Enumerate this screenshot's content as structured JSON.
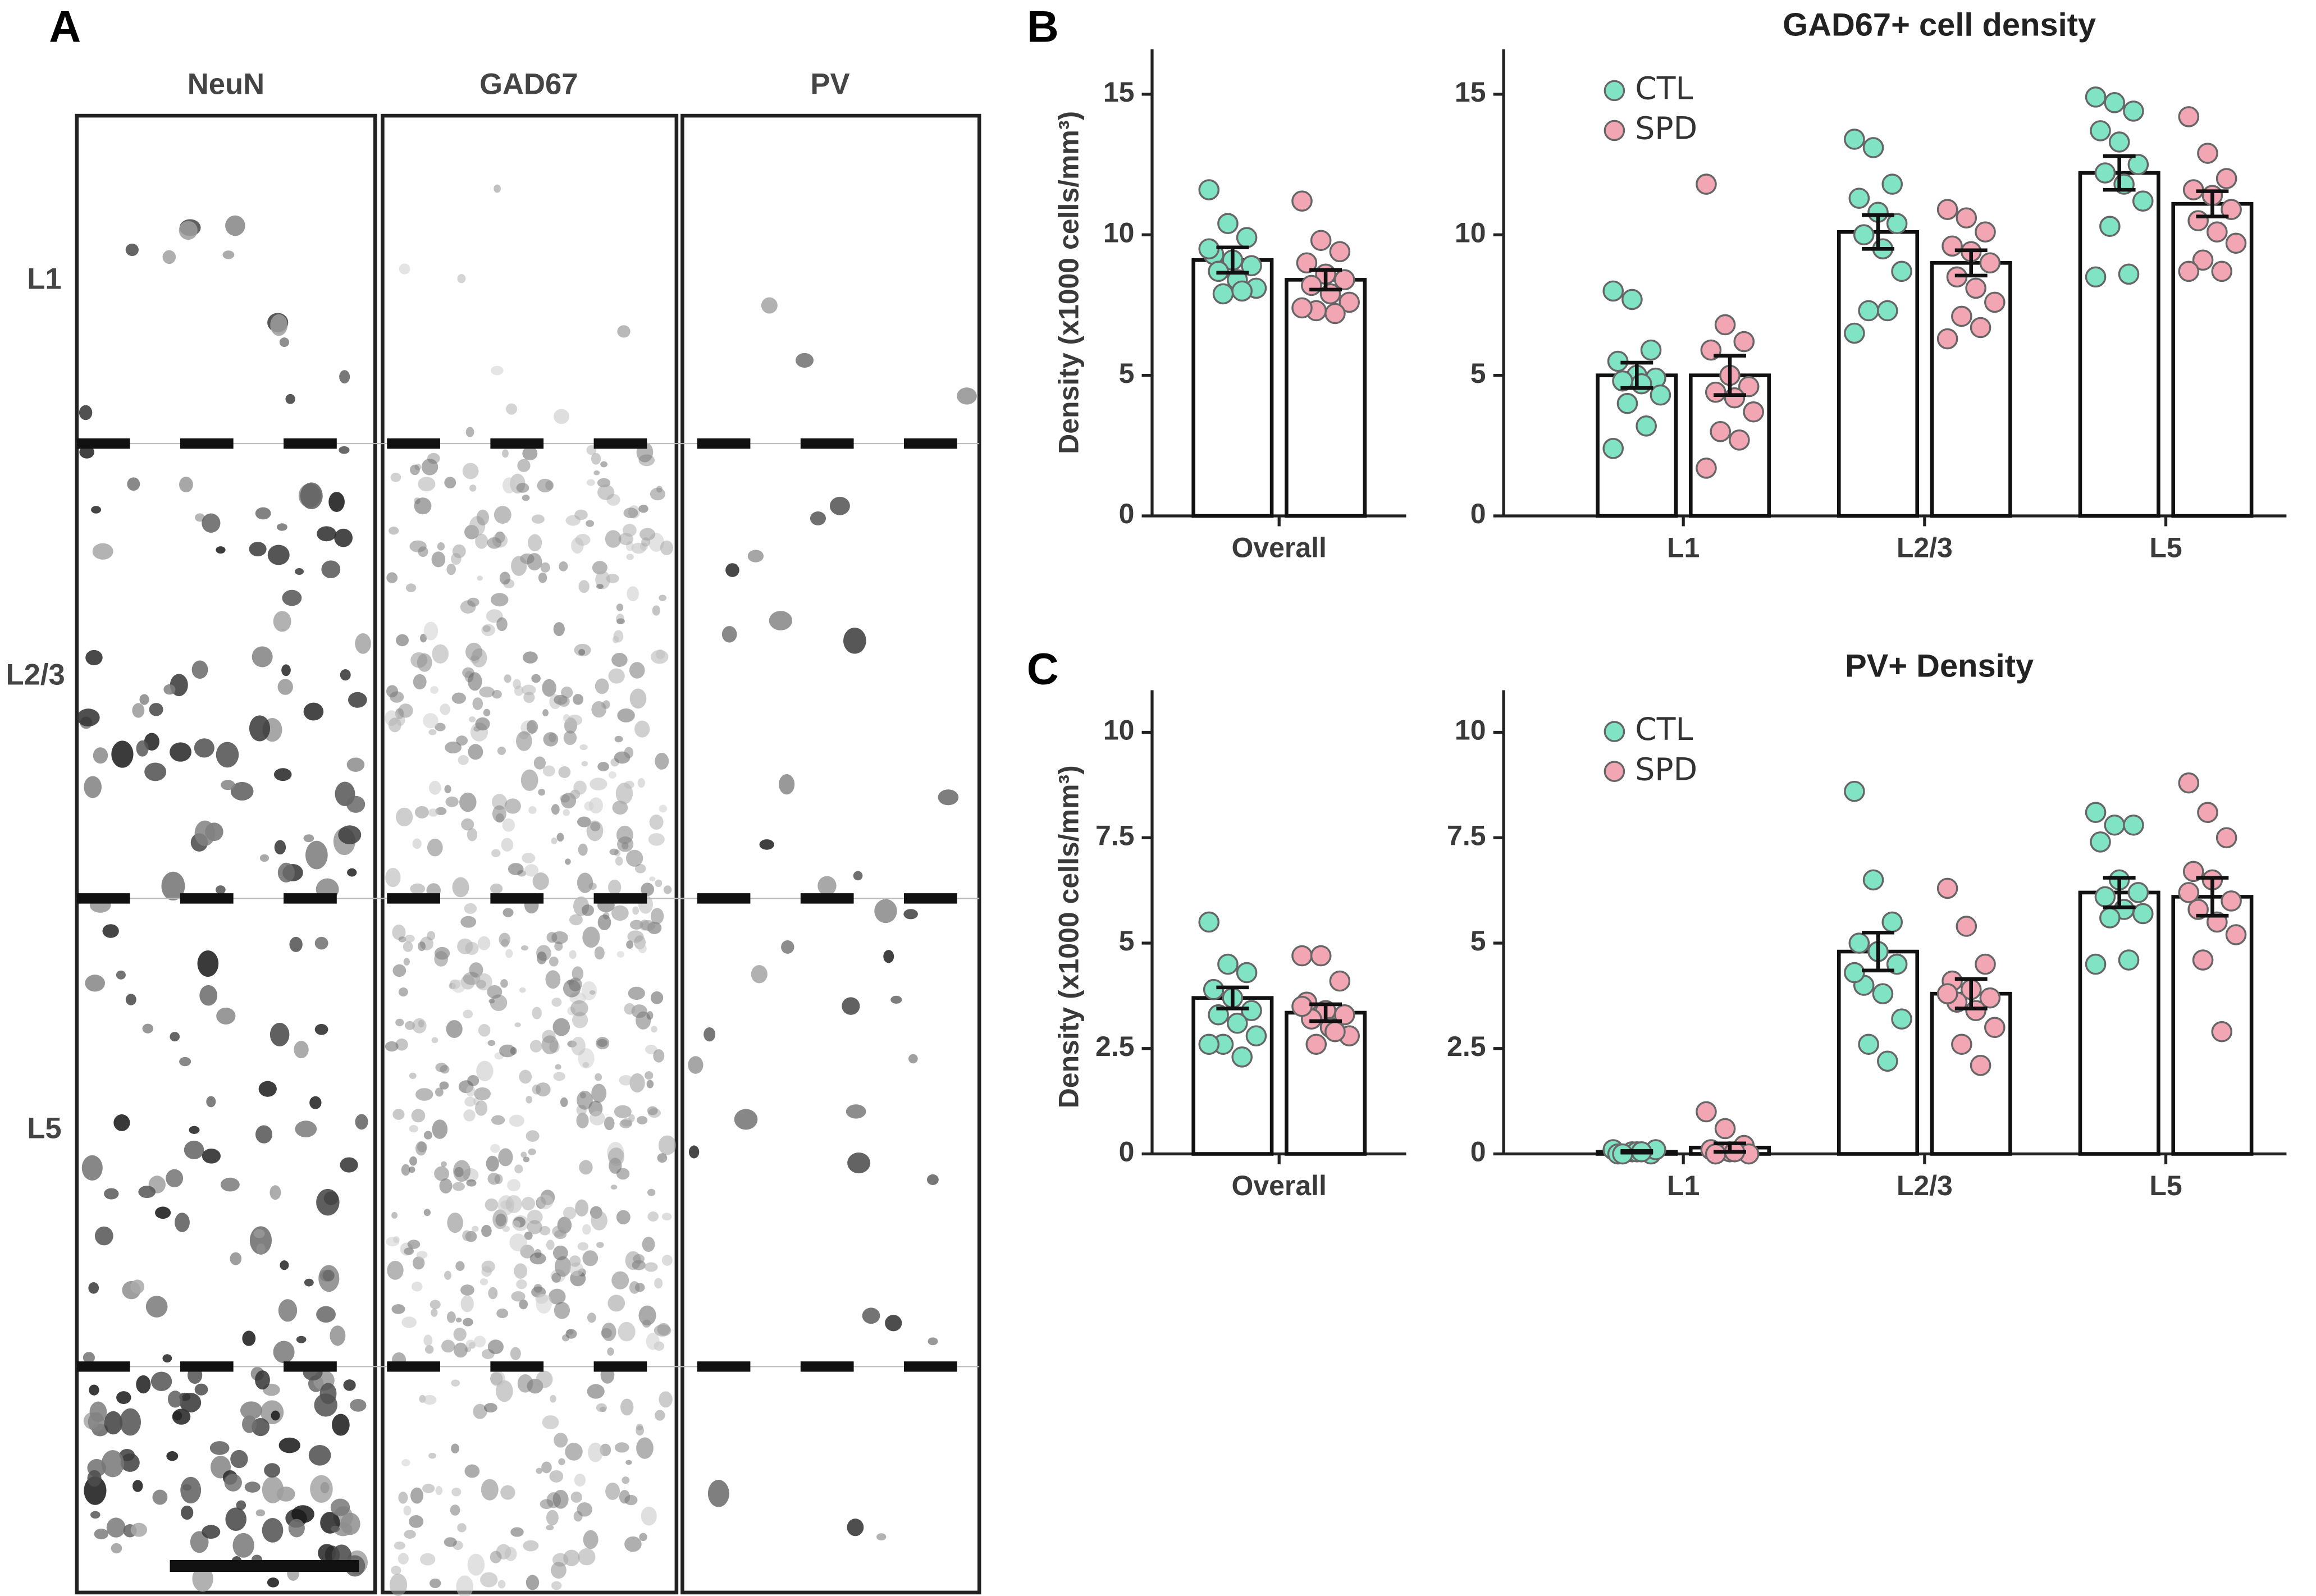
{
  "figure": {
    "panel_labels": [
      "A",
      "B",
      "C"
    ],
    "image_panel": {
      "columns": [
        "NeuN",
        "GAD67",
        "PV"
      ],
      "rows": [
        "L1",
        "L2/3",
        "L5"
      ]
    }
  },
  "chart_data": [
    {
      "type": "bar",
      "ylabel": "Density (x1000 cells/mm³)",
      "categories": [
        "Overall"
      ],
      "ylim": [
        0,
        16.6
      ],
      "yticks": [
        0,
        5,
        10,
        15
      ],
      "series": [
        {
          "color": "#7fe3c4",
          "values": [
            9.1
          ],
          "errors": [
            0.45
          ],
          "points": [
            [
              11.6,
              10.4,
              9.9,
              9.3,
              9.1,
              8.9,
              8.7,
              8.4,
              8.1,
              7.9,
              8.0,
              9.5
            ]
          ]
        },
        {
          "color": "#f2a5b3",
          "values": [
            8.4
          ],
          "errors": [
            0.35
          ],
          "points": [
            [
              11.2,
              9.8,
              9.4,
              9.0,
              8.6,
              8.4,
              8.2,
              7.9,
              7.6,
              7.3,
              7.2,
              7.4
            ]
          ]
        }
      ]
    },
    {
      "type": "bar",
      "title": "GAD67+ cell density",
      "categories": [
        "L1",
        "L2/3",
        "L5"
      ],
      "ylim": [
        0,
        16.6
      ],
      "yticks": [
        0,
        5,
        10,
        15
      ],
      "legend": "upper left",
      "series": [
        {
          "name": "CTL",
          "color": "#7fe3c4",
          "values": [
            5.0,
            10.1,
            12.2
          ],
          "errors": [
            0.45,
            0.6,
            0.6
          ],
          "points": [
            [
              8.0,
              7.7,
              5.9,
              5.5,
              5.0,
              4.9,
              4.8,
              4.7,
              4.3,
              4.0,
              3.2,
              2.4
            ],
            [
              13.4,
              13.1,
              11.8,
              11.3,
              10.8,
              10.4,
              10.0,
              9.5,
              8.7,
              7.3,
              7.3,
              6.5
            ],
            [
              14.9,
              14.7,
              14.4,
              13.7,
              13.3,
              12.5,
              12.2,
              11.8,
              11.2,
              10.3,
              8.6,
              8.5
            ]
          ]
        },
        {
          "name": "SPD",
          "color": "#f2a5b3",
          "values": [
            5.0,
            9.0,
            11.1
          ],
          "errors": [
            0.7,
            0.45,
            0.45
          ],
          "points": [
            [
              11.8,
              6.8,
              6.2,
              5.9,
              5.0,
              4.6,
              4.4,
              4.2,
              3.7,
              3.0,
              2.7,
              1.7
            ],
            [
              10.9,
              10.6,
              10.1,
              9.6,
              9.4,
              9.0,
              8.5,
              8.1,
              7.6,
              7.1,
              6.7,
              6.3
            ],
            [
              14.2,
              12.9,
              12.0,
              11.6,
              11.4,
              10.9,
              10.5,
              10.1,
              9.7,
              9.1,
              8.7,
              8.7
            ]
          ]
        }
      ]
    },
    {
      "type": "bar",
      "ylabel": "Density (x1000 cells/mm³)",
      "categories": [
        "Overall"
      ],
      "ylim": [
        0,
        11
      ],
      "yticks": [
        0,
        2.5,
        5,
        7.5,
        10
      ],
      "series": [
        {
          "color": "#7fe3c4",
          "values": [
            3.7
          ],
          "errors": [
            0.25
          ],
          "points": [
            [
              5.5,
              4.5,
              4.3,
              3.9,
              3.7,
              3.4,
              3.3,
              3.1,
              2.8,
              2.6,
              2.3,
              2.6
            ]
          ]
        },
        {
          "color": "#f2a5b3",
          "values": [
            3.35
          ],
          "errors": [
            0.2
          ],
          "points": [
            [
              4.7,
              4.7,
              4.1,
              3.6,
              3.4,
              3.3,
              3.2,
              3.0,
              2.8,
              2.6,
              2.9,
              3.5
            ]
          ]
        }
      ]
    },
    {
      "type": "bar",
      "title": "PV+ Density",
      "categories": [
        "L1",
        "L2/3",
        "L5"
      ],
      "ylim": [
        0,
        11
      ],
      "yticks": [
        0,
        2.5,
        5,
        7.5,
        10
      ],
      "legend": "upper left",
      "series": [
        {
          "name": "CTL",
          "color": "#7fe3c4",
          "values": [
            0.05,
            4.8,
            6.2
          ],
          "errors": [
            0.02,
            0.45,
            0.35
          ],
          "points": [
            [
              0.1,
              0.05,
              0,
              0,
              0.05,
              0.1,
              0,
              0.05
            ],
            [
              8.6,
              6.5,
              5.5,
              5.0,
              4.8,
              4.5,
              4.0,
              3.8,
              3.2,
              2.6,
              2.2,
              4.3
            ],
            [
              8.1,
              7.8,
              7.8,
              7.4,
              6.5,
              6.2,
              6.1,
              5.8,
              5.7,
              5.6,
              4.6,
              4.5
            ]
          ]
        },
        {
          "name": "SPD",
          "color": "#f2a5b3",
          "values": [
            0.15,
            3.8,
            6.1
          ],
          "errors": [
            0.1,
            0.35,
            0.45
          ],
          "points": [
            [
              1.0,
              0.6,
              0.2,
              0.1,
              0.05,
              0,
              0,
              0.05
            ],
            [
              6.3,
              5.4,
              4.5,
              4.1,
              3.9,
              3.7,
              3.6,
              3.4,
              3.0,
              2.6,
              2.1,
              3.8
            ],
            [
              8.8,
              8.1,
              7.5,
              6.7,
              6.5,
              6.0,
              5.8,
              5.5,
              5.2,
              4.6,
              2.9,
              6.2
            ]
          ]
        }
      ]
    }
  ]
}
